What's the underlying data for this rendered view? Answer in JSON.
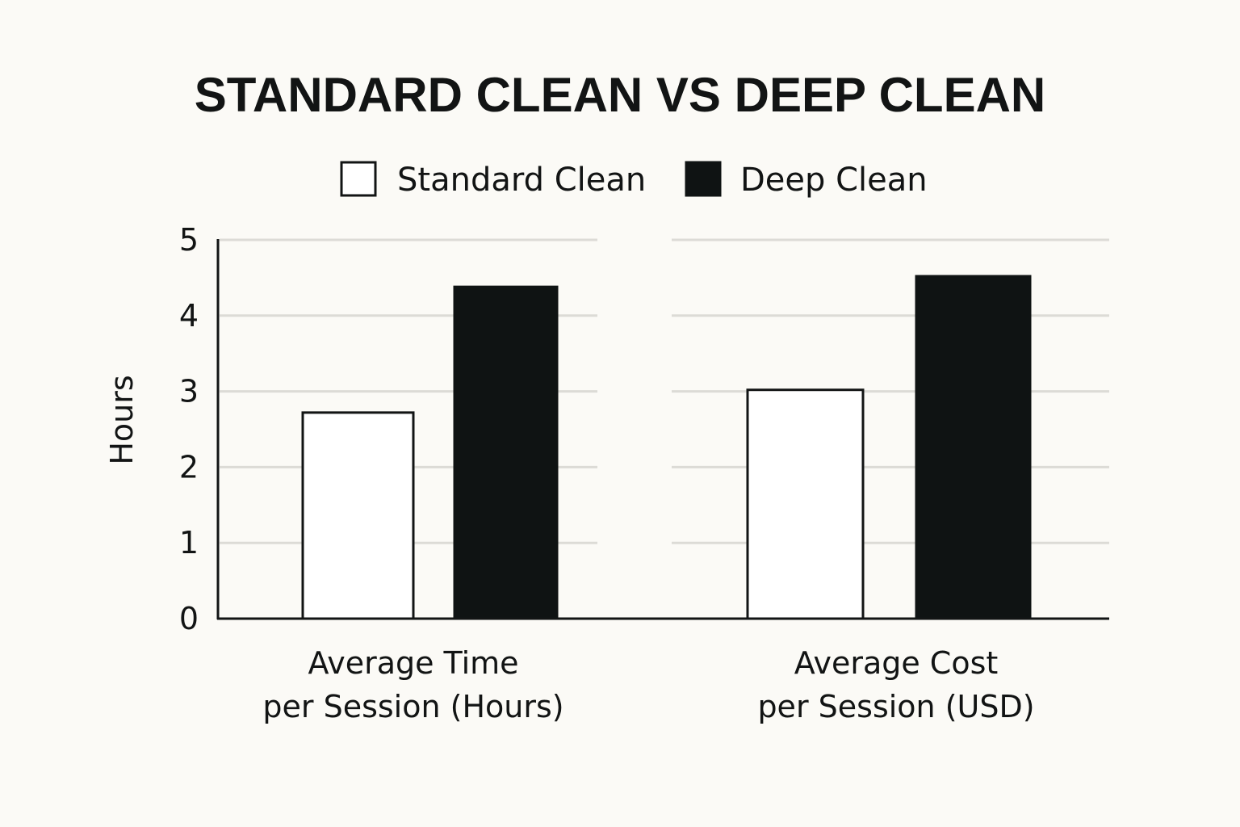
{
  "chart_data": {
    "type": "bar",
    "title": "STANDARD CLEAN VS DEEP CLEAN",
    "ylabel": "Hours",
    "xlabel": "",
    "ylim": [
      0,
      5
    ],
    "yticks": [
      0,
      1,
      2,
      3,
      4,
      5
    ],
    "grid": true,
    "legend_position": "top-center",
    "categories": [
      [
        "Average Time",
        "per Session (Hours)"
      ],
      [
        "Average Cost",
        "per Session (USD)"
      ]
    ],
    "series": [
      {
        "name": "Standard Clean",
        "values": [
          2.72,
          3.02
        ],
        "color": "#ffffff",
        "stroke": "#121414"
      },
      {
        "name": "Deep Clean",
        "values": [
          4.38,
          4.52
        ],
        "color": "#0f1313",
        "stroke": "#0f1313"
      }
    ]
  }
}
